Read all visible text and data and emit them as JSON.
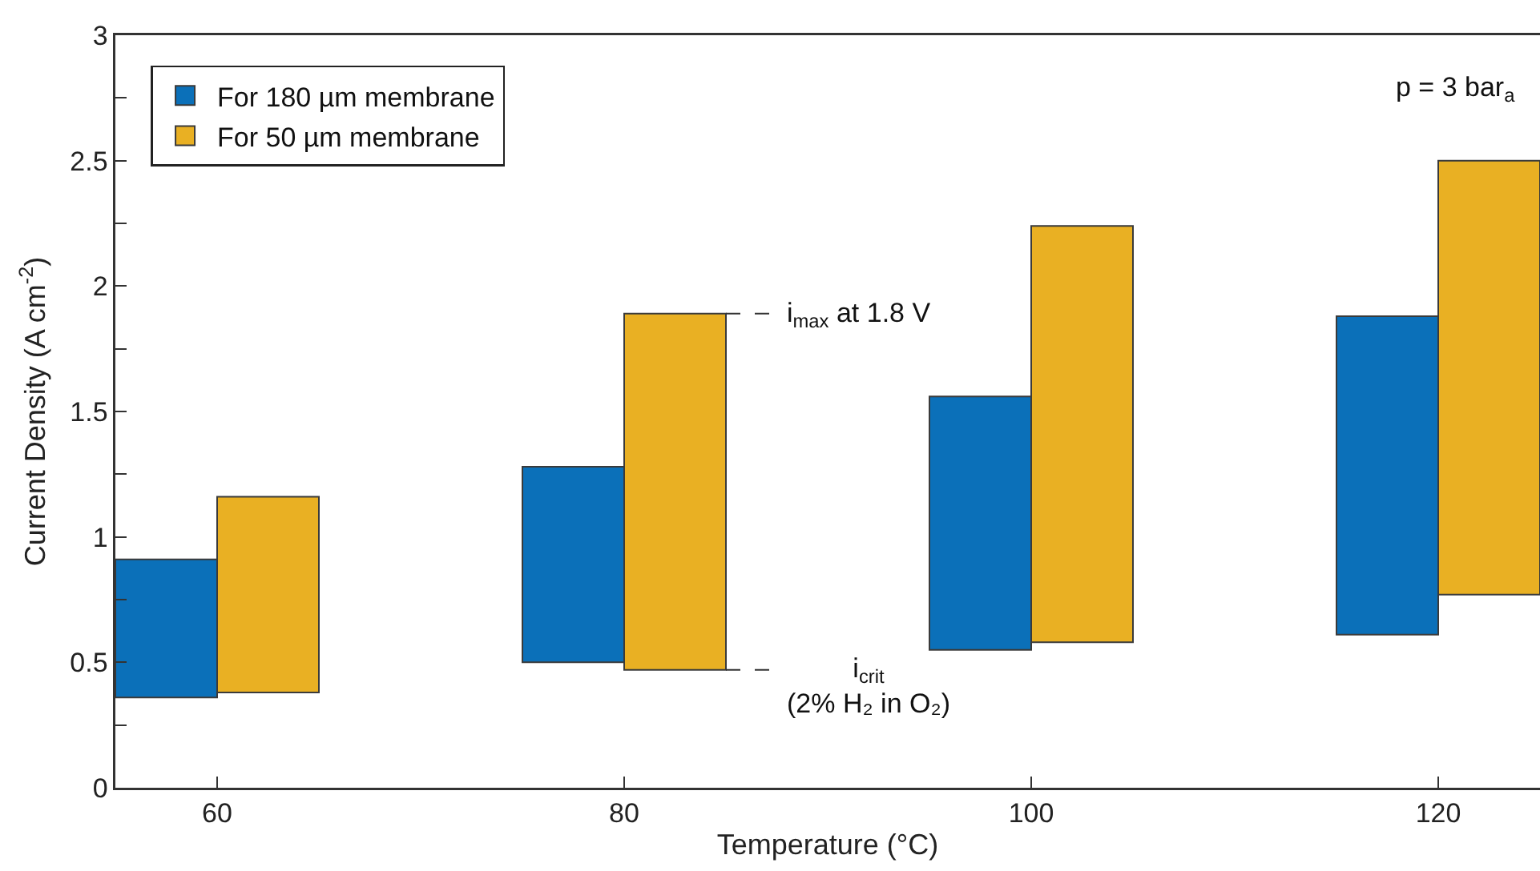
{
  "chart_data": {
    "type": "bar",
    "xlabel": "Temperature (°C)",
    "ylabel": "Current Density (A cm$^{-2}$)",
    "series": [
      {
        "name": "For 180 µm membrane",
        "color": "#0b70b9",
        "x": [
          57.5,
          77.5,
          97.5,
          117.5
        ],
        "base": [
          0.36,
          0.5,
          0.55,
          0.61
        ],
        "values": [
          0.55,
          0.78,
          1.01,
          1.27
        ]
      },
      {
        "name": "For 50 µm membrane",
        "color": "#e9b023",
        "x": [
          62.5,
          82.5,
          102.5,
          122.5
        ],
        "base": [
          0.38,
          0.47,
          0.58,
          0.77
        ],
        "values": [
          0.78,
          1.42,
          1.66,
          1.73
        ]
      }
    ],
    "xlim": [
      55,
      125
    ],
    "xticks": [
      60,
      80,
      100,
      120
    ],
    "ylim": [
      0,
      3
    ],
    "yticks": [
      0,
      {
        "value": 0.25,
        "label": null
      },
      0.5,
      {
        "value": 0.75,
        "label": null
      },
      1,
      {
        "value": 1.25,
        "label": null
      },
      1.5,
      {
        "value": 1.75,
        "label": null
      },
      2,
      {
        "value": 2.25,
        "label": null
      },
      2.5,
      {
        "value": 2.75,
        "label": null
      },
      3
    ],
    "annotations": [
      {
        "text": "i$_{max}$ at 1.8 V",
        "x": 85,
        "y": 1.89
      },
      {
        "text": "i$_{crit}$\n(2% H₂ in O₂)",
        "x": 85,
        "y": 0.47
      },
      "p = 3 bar$_{a}$"
    ],
    "legend": "top left",
    "grid": false
  }
}
